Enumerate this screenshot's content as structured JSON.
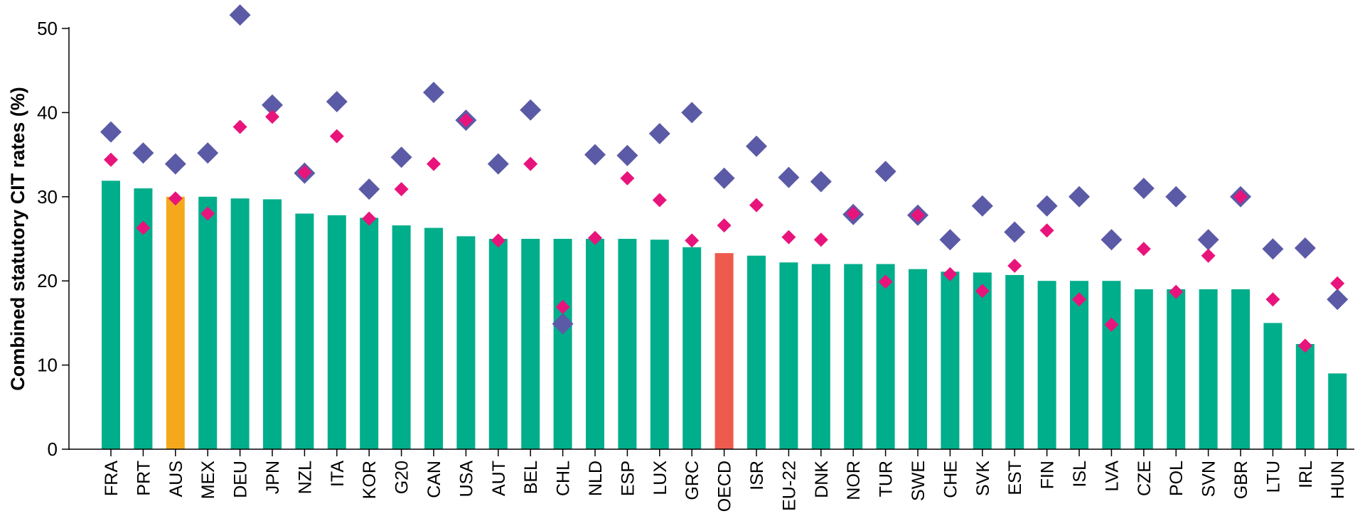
{
  "chart_data": {
    "type": "bar",
    "ylabel": "Combined statutory CIT rates (%)",
    "ylim": [
      0,
      50
    ],
    "yticks": [
      0,
      10,
      20,
      30,
      40,
      50
    ],
    "grid": false,
    "colors": {
      "bar": "#00AE8B",
      "highlight_AUS": "#F5A81C",
      "highlight_OECD": "#EF5A4E",
      "marker_large": "#5B5AA6",
      "marker_small": "#E8147C"
    },
    "categories": [
      "FRA",
      "PRT",
      "AUS",
      "MEX",
      "DEU",
      "JPN",
      "NZL",
      "ITA",
      "KOR",
      "G20",
      "CAN",
      "USA",
      "AUT",
      "BEL",
      "CHL",
      "NLD",
      "ESP",
      "LUX",
      "GRC",
      "OECD",
      "ISR",
      "EU-22",
      "DNK",
      "NOR",
      "TUR",
      "SWE",
      "CHE",
      "SVK",
      "EST",
      "FIN",
      "ISL",
      "LVA",
      "CZE",
      "POL",
      "SVN",
      "GBR",
      "LTU",
      "IRL",
      "HUN"
    ],
    "series": [
      {
        "type": "bar",
        "values": [
          31.9,
          31.0,
          30.0,
          30.0,
          29.8,
          29.7,
          28.0,
          27.8,
          27.5,
          26.6,
          26.3,
          25.3,
          25.0,
          25.0,
          25.0,
          25.0,
          25.0,
          24.9,
          24.0,
          23.3,
          23.0,
          22.2,
          22.0,
          22.0,
          22.0,
          21.4,
          21.1,
          21.0,
          20.7,
          20.0,
          20.0,
          20.0,
          19.0,
          19.0,
          19.0,
          19.0,
          15.0,
          12.5,
          9.0
        ]
      },
      {
        "type": "scatter",
        "marker": "diamond-large",
        "values": [
          37.7,
          35.2,
          33.9,
          35.2,
          51.6,
          40.9,
          32.8,
          41.3,
          30.9,
          34.7,
          42.4,
          39.1,
          33.9,
          40.3,
          14.9,
          35.0,
          34.9,
          37.5,
          40.0,
          32.2,
          36.0,
          32.3,
          31.8,
          27.9,
          33.0,
          27.8,
          24.9,
          28.9,
          25.8,
          28.9,
          30.0,
          24.9,
          31.0,
          30.0,
          24.9,
          30.0,
          23.8,
          23.9,
          17.8
        ]
      },
      {
        "type": "scatter",
        "marker": "diamond-small",
        "values": [
          34.4,
          26.3,
          29.8,
          28.0,
          38.3,
          39.5,
          32.9,
          37.2,
          27.4,
          30.9,
          33.9,
          39.1,
          24.8,
          33.9,
          16.9,
          25.1,
          32.2,
          29.6,
          24.8,
          26.6,
          29.0,
          25.2,
          24.9,
          28.0,
          19.9,
          27.8,
          20.8,
          18.8,
          21.8,
          26.0,
          17.8,
          14.8,
          23.8,
          18.7,
          23.0,
          30.0,
          17.8,
          12.3,
          19.7
        ]
      }
    ]
  }
}
